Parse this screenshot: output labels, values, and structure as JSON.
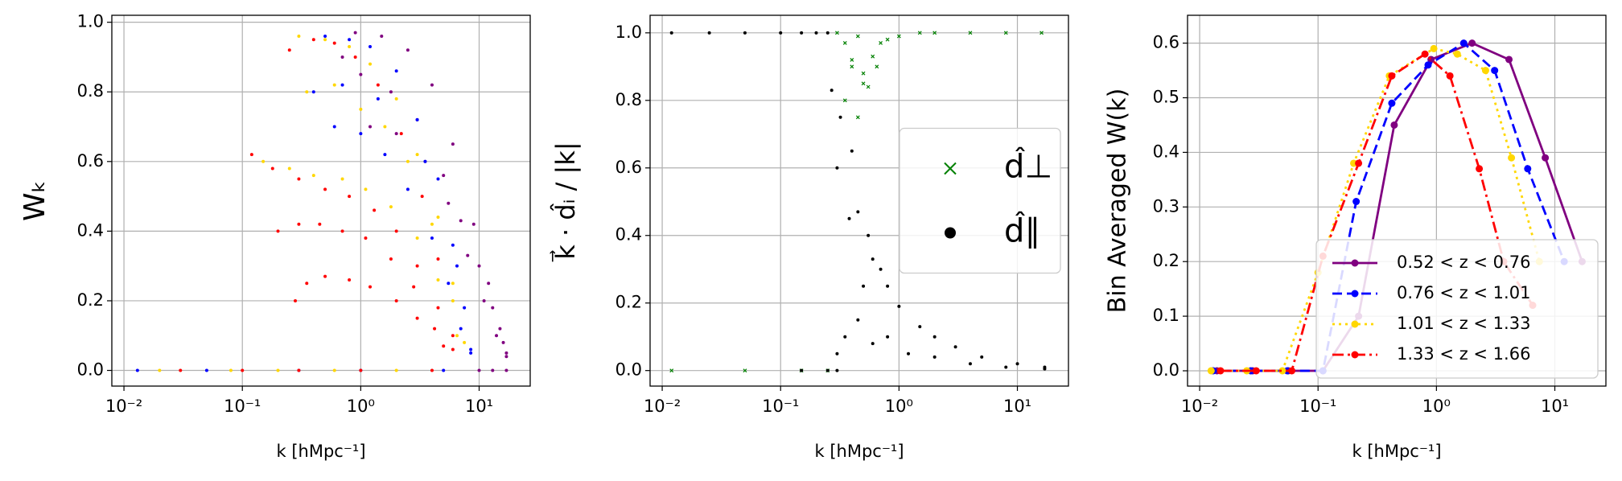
{
  "chart_data": [
    {
      "type": "scatter",
      "xlog": true,
      "grid": true,
      "xlabel": "k [hMpc⁻¹]",
      "ylabel": "Wₖ",
      "xlim": [
        0.0079,
        27
      ],
      "ylim": [
        -0.045,
        1.02
      ],
      "xticks": [
        {
          "value": 0.01,
          "label": "10⁻²"
        },
        {
          "value": 0.1,
          "label": "10⁻¹"
        },
        {
          "value": 1,
          "label": "10⁰"
        },
        {
          "value": 10,
          "label": "10¹"
        }
      ],
      "yticks": [
        {
          "value": 0,
          "label": "0.0"
        },
        0.2,
        0.4,
        0.6,
        0.8,
        {
          "value": 1,
          "label": "1.0"
        }
      ],
      "series": [
        {
          "color": "#800080",
          "marker": "o",
          "x": [
            0.9,
            1.5,
            2.5,
            4,
            6,
            9,
            12,
            15,
            17,
            1.2,
            2,
            3.5,
            5.5,
            8,
            11,
            14,
            17,
            0.7,
            1,
            1.8,
            3,
            5,
            7,
            10,
            13,
            16,
            10,
            13,
            17
          ],
          "values": [
            0.97,
            0.96,
            0.92,
            0.82,
            0.65,
            0.42,
            0.25,
            0.12,
            0.04,
            0.7,
            0.68,
            0.6,
            0.48,
            0.33,
            0.2,
            0.1,
            0.05,
            0.9,
            0.85,
            0.8,
            0.72,
            0.56,
            0.43,
            0.3,
            0.18,
            0.08,
            0,
            0,
            0
          ]
        },
        {
          "color": "#0000ff",
          "marker": "o",
          "x": [
            0.5,
            0.8,
            1.2,
            2,
            3,
            4.5,
            6,
            7.5,
            8.5,
            0.6,
            1,
            1.6,
            2.5,
            4,
            5.5,
            7,
            8.5,
            0.4,
            0.7,
            1.4,
            3.5,
            6.5,
            0.013,
            0.05,
            0.3,
            1,
            5
          ],
          "values": [
            0.96,
            0.95,
            0.93,
            0.86,
            0.72,
            0.55,
            0.36,
            0.18,
            0.06,
            0.7,
            0.68,
            0.62,
            0.52,
            0.38,
            0.25,
            0.12,
            0.05,
            0.8,
            0.82,
            0.78,
            0.6,
            0.3,
            0,
            0,
            0,
            0,
            0
          ]
        },
        {
          "color": "#ffd700",
          "marker": "o",
          "x": [
            0.3,
            0.5,
            0.8,
            1.2,
            2,
            3,
            4.5,
            6,
            7.5,
            0.15,
            0.25,
            0.4,
            0.7,
            1.1,
            1.8,
            3,
            4.5,
            6.5,
            0.35,
            0.6,
            1,
            1.6,
            2.5,
            4,
            6,
            0.02,
            0.08,
            0.2,
            0.6,
            2
          ],
          "values": [
            0.96,
            0.95,
            0.93,
            0.88,
            0.78,
            0.62,
            0.44,
            0.25,
            0.08,
            0.6,
            0.58,
            0.56,
            0.55,
            0.52,
            0.47,
            0.38,
            0.26,
            0.1,
            0.8,
            0.82,
            0.75,
            0.7,
            0.6,
            0.42,
            0.2,
            0,
            0,
            0,
            0,
            0
          ]
        },
        {
          "color": "#ff0000",
          "marker": "o",
          "x": [
            0.25,
            0.4,
            0.6,
            0.9,
            1.4,
            2.2,
            3.3,
            4.5,
            6,
            0.12,
            0.18,
            0.3,
            0.5,
            0.8,
            1.3,
            2,
            3,
            4.5,
            6,
            0.28,
            0.35,
            0.5,
            0.8,
            1.2,
            2,
            3,
            5,
            0.2,
            0.3,
            0.45,
            0.7,
            1.1,
            1.8,
            2.8,
            4.2,
            0.03,
            0.1,
            0.3,
            1,
            4
          ],
          "values": [
            0.92,
            0.95,
            0.94,
            0.9,
            0.82,
            0.68,
            0.5,
            0.32,
            0.1,
            0.62,
            0.58,
            0.55,
            0.52,
            0.5,
            0.46,
            0.4,
            0.3,
            0.18,
            0.06,
            0.2,
            0.25,
            0.27,
            0.26,
            0.24,
            0.2,
            0.15,
            0.07,
            0.4,
            0.42,
            0.42,
            0.4,
            0.38,
            0.32,
            0.24,
            0.12,
            0,
            0,
            0,
            0,
            0
          ]
        }
      ]
    },
    {
      "type": "scatter",
      "xlog": true,
      "grid": true,
      "xlabel": "k [hMpc⁻¹]",
      "ylabel": "k⃗ · d̂ᵢ / |k|",
      "xlim": [
        0.0079,
        27
      ],
      "ylim": [
        -0.046,
        1.052
      ],
      "xticks": [
        {
          "value": 0.01,
          "label": "10⁻²"
        },
        {
          "value": 0.1,
          "label": "10⁻¹"
        },
        {
          "value": 1,
          "label": "10⁰"
        },
        {
          "value": 10,
          "label": "10¹"
        }
      ],
      "yticks": [
        {
          "value": 0,
          "label": "0.0"
        },
        0.2,
        0.4,
        0.6,
        0.8,
        {
          "value": 1,
          "label": "1.0"
        }
      ],
      "legend": "center right",
      "series": [
        {
          "name": "d̂⊥",
          "color": "#008000",
          "marker": "x",
          "x": [
            0.3,
            0.35,
            0.4,
            0.45,
            0.5,
            0.6,
            0.7,
            0.8,
            1,
            1.5,
            2,
            4,
            8,
            16,
            0.35,
            0.45,
            0.55,
            0.65,
            0.4,
            0.5,
            0.012,
            0.05,
            0.15,
            0.25
          ],
          "values": [
            1,
            0.97,
            0.9,
            0.99,
            0.85,
            0.93,
            0.97,
            0.98,
            0.99,
            1,
            1,
            1,
            1,
            1,
            0.8,
            0.75,
            0.84,
            0.9,
            0.92,
            0.88,
            0,
            0,
            0,
            0
          ]
        },
        {
          "name": "d̂∥",
          "color": "#000000",
          "marker": "o",
          "x": [
            0.012,
            0.025,
            0.05,
            0.1,
            0.15,
            0.2,
            0.25,
            0.27,
            0.3,
            0.32,
            0.38,
            0.4,
            0.45,
            0.5,
            0.55,
            0.6,
            0.7,
            0.8,
            1,
            1.5,
            2,
            3,
            5,
            10,
            17,
            0.3,
            0.35,
            0.45,
            0.6,
            0.8,
            1.2,
            2,
            4,
            8,
            17,
            0.15,
            0.25,
            0.3
          ],
          "values": [
            1,
            1,
            1,
            1,
            1,
            1,
            1,
            0.83,
            0.6,
            0.75,
            0.45,
            0.65,
            0.47,
            0.25,
            0.4,
            0.33,
            0.3,
            0.25,
            0.19,
            0.13,
            0.1,
            0.07,
            0.04,
            0.02,
            0.01,
            0.05,
            0.1,
            0.15,
            0.08,
            0.1,
            0.05,
            0.04,
            0.02,
            0.01,
            0.005,
            0,
            0,
            0
          ]
        }
      ]
    },
    {
      "type": "line",
      "xlog": true,
      "grid": true,
      "xlabel": "k [hMpc⁻¹]",
      "ylabel": "Bin Averaged W(k)",
      "xlim": [
        0.0079,
        27
      ],
      "ylim": [
        -0.028,
        0.651
      ],
      "xticks": [
        {
          "value": 0.01,
          "label": "10⁻²"
        },
        {
          "value": 0.1,
          "label": "10⁻¹"
        },
        {
          "value": 1,
          "label": "10⁰"
        },
        {
          "value": 10,
          "label": "10¹"
        }
      ],
      "yticks": [
        {
          "value": 0,
          "label": "0.0"
        },
        0.1,
        0.2,
        0.3,
        0.4,
        0.5,
        0.6
      ],
      "legend": "lower right",
      "series": [
        {
          "name": "0.52 < z < 0.76",
          "color": "#800080",
          "linestyle": "solid",
          "x": [
            0.014,
            0.028,
            0.056,
            0.11,
            0.22,
            0.44,
            0.9,
            2.0,
            4.1,
            8.3,
            17
          ],
          "values": [
            0,
            0,
            0,
            0,
            0.1,
            0.45,
            0.57,
            0.6,
            0.57,
            0.39,
            0.2
          ]
        },
        {
          "name": "0.76 < z < 1.01",
          "color": "#0000ff",
          "linestyle": "dashed",
          "x": [
            0.013,
            0.027,
            0.055,
            0.11,
            0.21,
            0.42,
            0.85,
            1.7,
            3.1,
            5.9,
            12
          ],
          "values": [
            0,
            0,
            0,
            0,
            0.31,
            0.49,
            0.56,
            0.6,
            0.55,
            0.37,
            0.2
          ]
        },
        {
          "name": "1.01 < z < 1.33",
          "color": "#ffd700",
          "linestyle": "dotted",
          "x": [
            0.0125,
            0.025,
            0.05,
            0.1,
            0.2,
            0.4,
            0.95,
            1.5,
            2.6,
            4.3,
            7.4
          ],
          "values": [
            0,
            0,
            0,
            0.18,
            0.38,
            0.54,
            0.59,
            0.58,
            0.55,
            0.39,
            0.2
          ]
        },
        {
          "name": "1.33 < z < 1.66",
          "color": "#ff0000",
          "linestyle": "dashdot",
          "x": [
            0.015,
            0.03,
            0.06,
            0.11,
            0.22,
            0.42,
            0.8,
            1.3,
            2.3,
            3.7,
            6.5
          ],
          "values": [
            0,
            0,
            0,
            0.21,
            0.38,
            0.54,
            0.58,
            0.54,
            0.37,
            0.2,
            0.12
          ]
        }
      ]
    }
  ]
}
